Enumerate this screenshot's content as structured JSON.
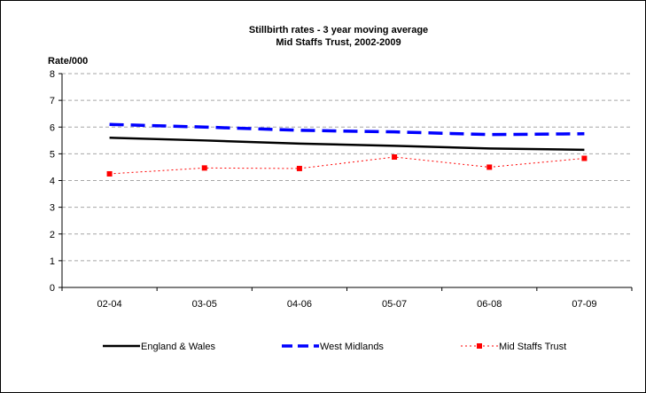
{
  "chart_data": {
    "type": "line",
    "title": "Stillbirth rates - 3 year moving average",
    "subtitle": "Mid Staffs Trust, 2002-2009",
    "ylabel": "Rate/000",
    "xlabel": "",
    "categories": [
      "02-04",
      "03-05",
      "04-06",
      "05-07",
      "06-08",
      "07-09"
    ],
    "ylim": [
      0,
      8
    ],
    "yticks": [
      "0",
      "1",
      "2",
      "3",
      "4",
      "5",
      "6",
      "7",
      "8"
    ],
    "grid": true,
    "legend_position": "bottom",
    "series": [
      {
        "name": "England & Wales",
        "values": [
          5.6,
          5.5,
          5.38,
          5.3,
          5.2,
          5.15
        ],
        "color": "#000000",
        "style": "solid"
      },
      {
        "name": "West Midlands",
        "values": [
          6.1,
          6.0,
          5.88,
          5.82,
          5.72,
          5.75
        ],
        "color": "#0000ff",
        "style": "dashed"
      },
      {
        "name": "Mid Staffs Trust",
        "values": [
          4.25,
          4.47,
          4.45,
          4.88,
          4.5,
          4.83
        ],
        "color": "#ff0000",
        "style": "dotted-markers"
      }
    ]
  }
}
